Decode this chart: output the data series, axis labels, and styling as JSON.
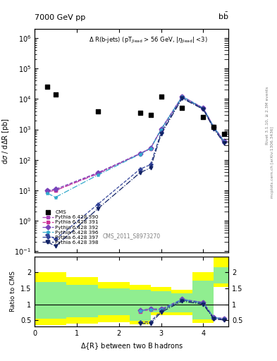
{
  "title_left": "7000 GeV pp",
  "title_right": "b$\\bar{\\text{b}}$",
  "annotation": "$\\Delta$ R(b-jets) (pT$_{\\mathregular{Jlead}}$ > 56 GeV, |$\\eta_{\\mathregular{Jlead}}$| <3)",
  "watermark": "CMS_2011_S8973270",
  "ylabel_main": "d$\\sigma$ / d$\\Delta$R [pb]",
  "ylabel_ratio": "Ratio to CMS",
  "xlabel": "$\\Delta${R} between two B hadrons",
  "right_label1": "Rivet 3.1.10, ≥ 2.3M events",
  "right_label2": "mcplots.cern.ch [arXiv:1306.3436]",
  "cms_x": [
    0.3,
    0.5,
    1.5,
    2.5,
    2.75,
    3.0,
    3.5,
    4.0,
    4.25,
    4.5
  ],
  "cms_y": [
    25000.0,
    14000.0,
    4000,
    3500,
    3000,
    12000,
    5000,
    2500,
    1200,
    700
  ],
  "mc_x": [
    0.3,
    0.5,
    1.5,
    2.5,
    2.75,
    3.0,
    3.5,
    4.0,
    4.25,
    4.5
  ],
  "p390_y": [
    9,
    10,
    35,
    160,
    240,
    1000,
    12000,
    5000,
    1200,
    400
  ],
  "p391_y": [
    10,
    10,
    37,
    158,
    238,
    980,
    11800,
    4950,
    1180,
    390
  ],
  "p392_y": [
    10,
    11,
    38,
    162,
    242,
    1020,
    12200,
    5050,
    1220,
    410
  ],
  "p396_y": [
    8,
    6,
    32,
    155,
    235,
    990,
    11900,
    4970,
    1190,
    395
  ],
  "p397_y": [
    0.35,
    0.25,
    3.5,
    50,
    70,
    800,
    11000,
    4800,
    1100,
    370
  ],
  "p398_y": [
    0.2,
    0.15,
    2.5,
    38,
    55,
    700,
    10500,
    4600,
    1050,
    350
  ],
  "ratio_x_start": 2.5,
  "ratio_x": [
    2.5,
    2.75,
    3.0,
    3.5,
    4.0,
    4.25,
    4.5
  ],
  "ratio_p390": [
    0.8,
    0.85,
    0.83,
    1.15,
    1.05,
    0.58,
    0.55
  ],
  "ratio_p391": [
    0.78,
    0.83,
    0.82,
    1.14,
    1.04,
    0.57,
    0.54
  ],
  "ratio_p392": [
    0.81,
    0.86,
    0.85,
    1.16,
    1.06,
    0.59,
    0.56
  ],
  "ratio_p396": [
    0.79,
    0.84,
    0.83,
    1.15,
    1.04,
    0.58,
    0.55
  ],
  "ratio_p397": [
    0.45,
    0.45,
    0.8,
    1.13,
    1.03,
    0.56,
    0.53
  ],
  "ratio_p398": [
    0.4,
    0.4,
    0.75,
    1.1,
    1.0,
    0.54,
    0.51
  ],
  "bin_edges": [
    0.0,
    0.75,
    1.5,
    2.25,
    2.75,
    3.25,
    3.75,
    4.25,
    4.75
  ],
  "yellow_lo": [
    0.35,
    0.4,
    0.45,
    0.38,
    0.65,
    0.65,
    0.42,
    1.55
  ],
  "yellow_hi": [
    2.0,
    1.85,
    1.7,
    1.6,
    1.55,
    1.45,
    2.0,
    2.5
  ],
  "green_lo": [
    0.55,
    0.6,
    0.65,
    0.48,
    0.75,
    0.75,
    0.52,
    1.65
  ],
  "green_hi": [
    1.7,
    1.6,
    1.5,
    1.45,
    1.4,
    1.35,
    1.75,
    2.15
  ],
  "color_390": "#AA44BB",
  "color_391": "#CC3399",
  "color_392": "#7744BB",
  "color_396": "#33AACC",
  "color_397": "#334499",
  "color_398": "#112266",
  "xlim": [
    0,
    4.6
  ],
  "ylim_main": [
    0.09,
    2000000.0
  ],
  "ylim_ratio": [
    0.3,
    2.5
  ]
}
